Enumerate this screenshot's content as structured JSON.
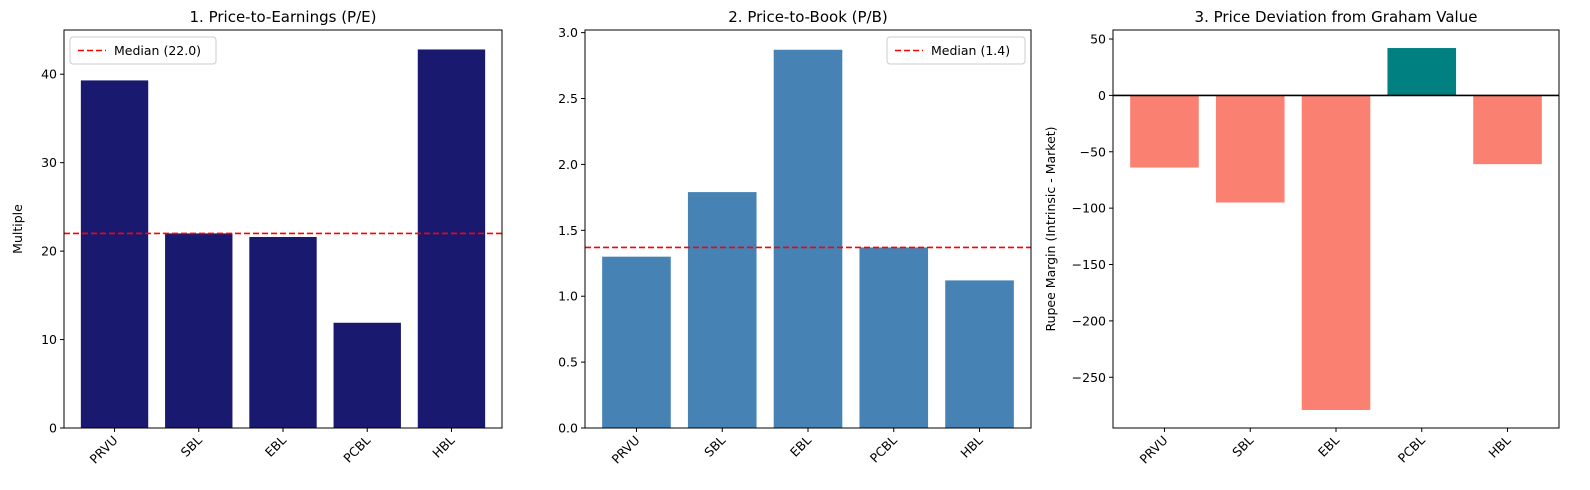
{
  "chart_data": [
    {
      "type": "bar",
      "title": "1. Price-to-Earnings (P/E)",
      "xlabel": "",
      "ylabel": "Multiple",
      "categories": [
        "PRVU",
        "SBL",
        "EBL",
        "PCBL",
        "HBL"
      ],
      "values": [
        39.3,
        22.0,
        21.6,
        11.9,
        42.8
      ],
      "bar_color": "#191970",
      "ylim": [
        0,
        45
      ],
      "yticks": [
        0,
        10,
        20,
        30,
        40
      ],
      "reference_line": {
        "label": "Median (22.0)",
        "value": 22.0,
        "color": "#ff0000",
        "style": "dashed"
      },
      "legend_position": "top-left"
    },
    {
      "type": "bar",
      "title": "2. Price-to-Book (P/B)",
      "xlabel": "",
      "ylabel": "",
      "categories": [
        "PRVU",
        "SBL",
        "EBL",
        "PCBL",
        "HBL"
      ],
      "values": [
        1.3,
        1.79,
        2.87,
        1.37,
        1.12
      ],
      "bar_color": "#4682b4",
      "ylim": [
        0,
        3.02
      ],
      "yticks": [
        "0.0",
        "0.5",
        "1.0",
        "1.5",
        "2.0",
        "2.5",
        "3.0"
      ],
      "reference_line": {
        "label": "Median (1.4)",
        "value": 1.37,
        "color": "#ff0000",
        "style": "dashed"
      },
      "legend_position": "top-right"
    },
    {
      "type": "bar",
      "title": "3. Price Deviation from Graham Value",
      "xlabel": "",
      "ylabel": "Rupee Margin (Intrinsic - Market)",
      "categories": [
        "PRVU",
        "SBL",
        "EBL",
        "PCBL",
        "HBL"
      ],
      "values": [
        -64,
        -95,
        -279,
        42,
        -61
      ],
      "positive_color": "#008080",
      "negative_color": "#fa8072",
      "ylim": [
        -295,
        58
      ],
      "yticks": [
        50,
        0,
        -50,
        -100,
        -150,
        -200,
        -250
      ],
      "ytick_labels": [
        "50",
        "0",
        "−50",
        "−100",
        "−150",
        "−200",
        "−250"
      ],
      "zero_line": true
    }
  ]
}
